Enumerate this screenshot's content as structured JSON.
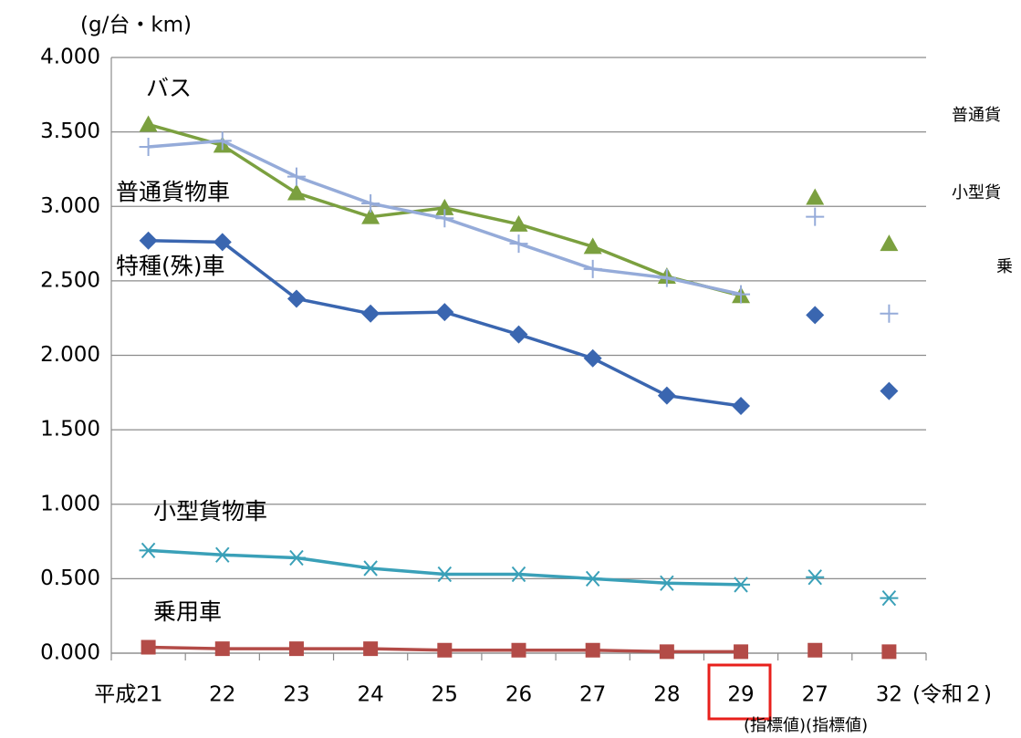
{
  "chart_data": {
    "type": "line",
    "unit": "(g/台・km)",
    "categories": [
      "平成21",
      "22",
      "23",
      "24",
      "25",
      "26",
      "27",
      "28",
      "29"
    ],
    "target_categories": [
      "27",
      "32"
    ],
    "target_note": "(令和２)",
    "target_caption": "(指標値)(指標値)",
    "ylim": [
      0,
      4
    ],
    "yticks": [
      {
        "value": 0,
        "label": "0.000"
      },
      {
        "value": 0.5,
        "label": "0.500"
      },
      {
        "value": 1,
        "label": "1.000"
      },
      {
        "value": 1.5,
        "label": "1.500"
      },
      {
        "value": 2,
        "label": "2.000"
      },
      {
        "value": 2.5,
        "label": "2.500"
      },
      {
        "value": 3,
        "label": "3.000"
      },
      {
        "value": 3.5,
        "label": "3.500"
      },
      {
        "value": 4,
        "label": "4.000"
      }
    ],
    "grid": true,
    "series": [
      {
        "color": "#7ba03f",
        "marker": "triangle",
        "values": [
          3.55,
          3.41,
          3.09,
          2.93,
          2.99,
          2.88,
          2.73,
          2.53,
          2.4
        ],
        "target_values": [
          3.06,
          2.75
        ]
      },
      {
        "color": "#95abd9",
        "marker": "plus",
        "values": [
          3.4,
          3.44,
          3.2,
          3.02,
          2.92,
          2.75,
          2.58,
          2.52,
          2.41
        ],
        "target_values": [
          2.93,
          2.28
        ]
      },
      {
        "color": "#3a66b0",
        "marker": "diamond",
        "values": [
          2.77,
          2.76,
          2.38,
          2.28,
          2.29,
          2.14,
          1.98,
          1.73,
          1.66
        ],
        "target_values": [
          2.27,
          1.76
        ]
      },
      {
        "color": "#3aa0b8",
        "marker": "asterisk",
        "values": [
          0.69,
          0.66,
          0.64,
          0.57,
          0.53,
          0.53,
          0.5,
          0.47,
          0.46
        ],
        "target_values": [
          0.51,
          0.37
        ]
      },
      {
        "color": "#b34b47",
        "marker": "square",
        "values": [
          0.04,
          0.03,
          0.03,
          0.03,
          0.02,
          0.02,
          0.02,
          0.01,
          0.01
        ],
        "target_values": [
          0.02,
          0.01
        ]
      }
    ],
    "annotations": [
      "バス",
      "普通貨物車",
      "特種(殊)車",
      "小型貨物車",
      "乗用車",
      "普通貨",
      "小型貨",
      "乗"
    ]
  }
}
